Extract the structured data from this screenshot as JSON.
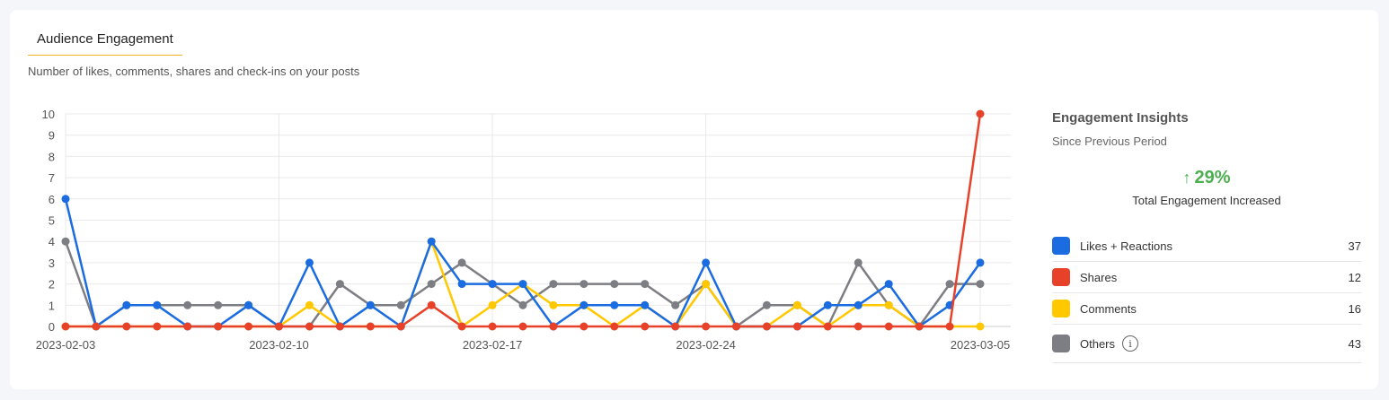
{
  "header": {
    "title": "Audience Engagement",
    "subtitle": "Number of likes, comments, shares and check-ins on your posts"
  },
  "insights": {
    "title": "Engagement Insights",
    "subtitle": "Since Previous Period",
    "change": "29%",
    "change_direction": "up",
    "description": "Total Engagement Increased",
    "legend": [
      {
        "label": "Likes + Reactions",
        "value": "37",
        "color": "#1a6ce0"
      },
      {
        "label": "Shares",
        "value": "12",
        "color": "#e8412a"
      },
      {
        "label": "Comments",
        "value": "16",
        "color": "#ffc800"
      },
      {
        "label": "Others",
        "value": "43",
        "color": "#7d7e83"
      }
    ]
  },
  "chart_data": {
    "type": "line",
    "x": [
      "2023-02-03",
      "2023-02-04",
      "2023-02-05",
      "2023-02-06",
      "2023-02-07",
      "2023-02-08",
      "2023-02-09",
      "2023-02-10",
      "2023-02-11",
      "2023-02-12",
      "2023-02-13",
      "2023-02-14",
      "2023-02-15",
      "2023-02-16",
      "2023-02-17",
      "2023-02-18",
      "2023-02-19",
      "2023-02-20",
      "2023-02-21",
      "2023-02-22",
      "2023-02-23",
      "2023-02-24",
      "2023-02-25",
      "2023-02-26",
      "2023-02-27",
      "2023-02-28",
      "2023-03-01",
      "2023-03-02",
      "2023-03-03",
      "2023-03-04",
      "2023-03-05"
    ],
    "xtick_labels": [
      "2023-02-03",
      "2023-02-10",
      "2023-02-17",
      "2023-02-24",
      "2023-03-05"
    ],
    "xtick_indices": [
      0,
      7,
      14,
      21,
      30
    ],
    "ylim": [
      0,
      10
    ],
    "yticks": [
      0,
      1,
      2,
      3,
      4,
      5,
      6,
      7,
      8,
      9,
      10
    ],
    "grid": true,
    "series": [
      {
        "name": "Others",
        "color": "#7d7e83",
        "values": [
          4,
          0,
          1,
          1,
          1,
          1,
          1,
          0,
          0,
          2,
          1,
          1,
          2,
          3,
          2,
          1,
          2,
          2,
          2,
          2,
          1,
          2,
          0,
          1,
          1,
          0,
          3,
          1,
          0,
          2,
          2
        ]
      },
      {
        "name": "Comments",
        "color": "#ffc800",
        "values": [
          0,
          0,
          0,
          0,
          0,
          0,
          0,
          0,
          1,
          0,
          0,
          0,
          4,
          0,
          1,
          2,
          1,
          1,
          0,
          1,
          0,
          2,
          0,
          0,
          1,
          0,
          1,
          1,
          0,
          0,
          0
        ]
      },
      {
        "name": "Likes + Reactions",
        "color": "#1a6ce0",
        "values": [
          6,
          0,
          1,
          1,
          0,
          0,
          1,
          0,
          3,
          0,
          1,
          0,
          4,
          2,
          2,
          2,
          0,
          1,
          1,
          1,
          0,
          3,
          0,
          0,
          0,
          1,
          1,
          2,
          0,
          1,
          3
        ]
      },
      {
        "name": "Shares",
        "color": "#e8412a",
        "values": [
          0,
          0,
          0,
          0,
          0,
          0,
          0,
          0,
          0,
          0,
          0,
          0,
          1,
          0,
          0,
          0,
          0,
          0,
          0,
          0,
          0,
          0,
          0,
          0,
          0,
          0,
          0,
          0,
          0,
          0,
          10
        ]
      }
    ]
  }
}
